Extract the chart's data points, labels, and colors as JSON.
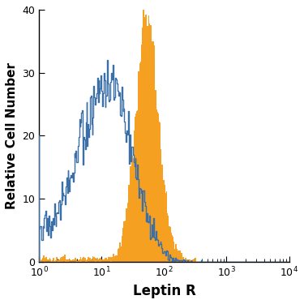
{
  "title": "",
  "xlabel": "Leptin R",
  "ylabel": "Relative Cell Number",
  "xlim": [
    1,
    10000
  ],
  "ylim": [
    0,
    40
  ],
  "yticks": [
    0,
    10,
    20,
    30,
    40
  ],
  "blue_color": "#3a6fa8",
  "orange_color": "#f5a020",
  "background_color": "#ffffff",
  "xlabel_fontsize": 12,
  "ylabel_fontsize": 11,
  "blue_peak_x_log": 1.1,
  "blue_peak_y": 32,
  "blue_log_std": 0.38,
  "orange_peak_x_log": 1.72,
  "orange_peak_y": 40,
  "orange_log_std": 0.18
}
